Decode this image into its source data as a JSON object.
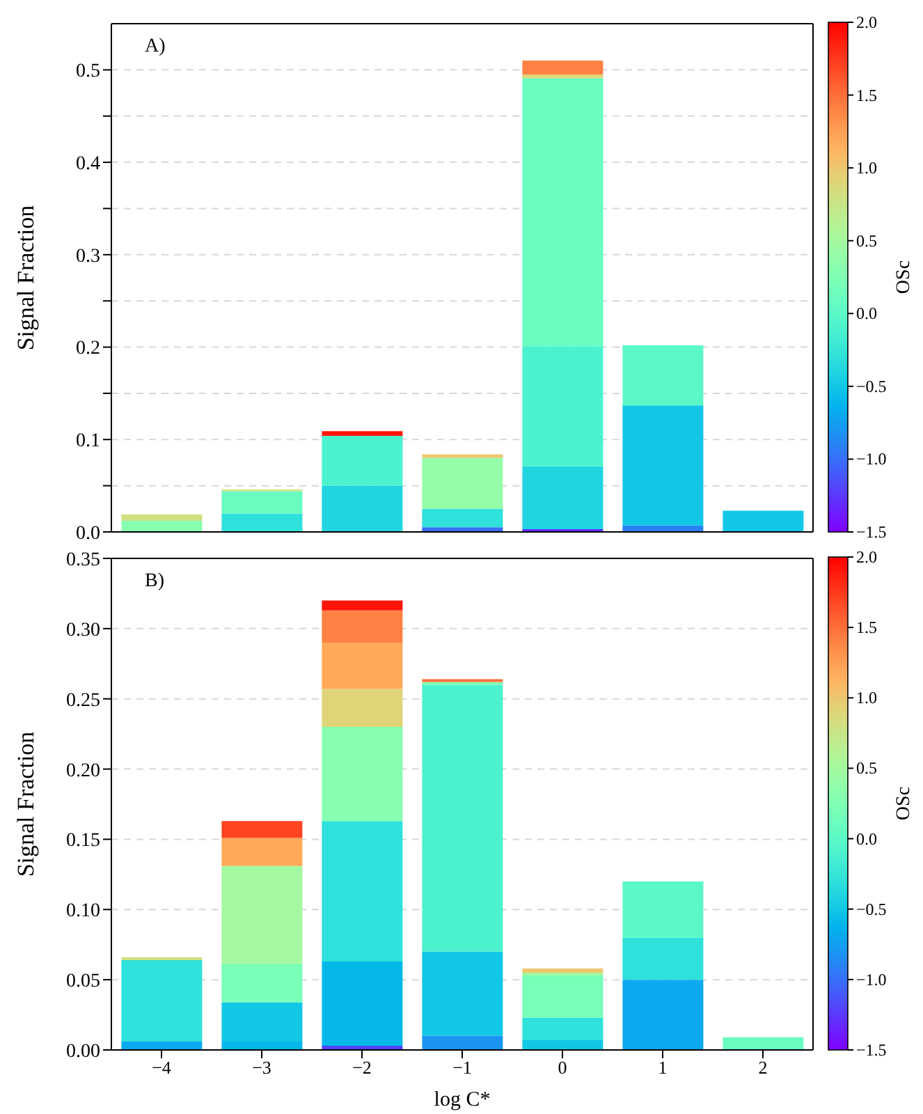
{
  "chart_data": [
    {
      "type": "bar",
      "stacked": true,
      "ylabel": "Signal Fraction",
      "clabel": "OSc",
      "annotations": [
        "A)"
      ],
      "tick_labels": "y",
      "grid": "y",
      "legend": false,
      "categories": [
        "−4",
        "−3",
        "−2",
        "−1",
        "0",
        "1",
        "2"
      ],
      "ylim": [
        0,
        0.55
      ],
      "yticks": [
        {
          "value": 0,
          "label": "0.0"
        },
        {
          "value": 0.05,
          "label": null
        },
        0.1,
        {
          "value": 0.15,
          "label": null
        },
        0.2,
        {
          "value": 0.25,
          "label": null
        },
        0.3,
        {
          "value": 0.35,
          "label": null
        },
        0.4,
        {
          "value": 0.45,
          "label": null
        },
        0.5
      ],
      "clim": [
        -1.5,
        2
      ],
      "cticks": [
        {
          "value": -1.5,
          "label": "−1.5"
        },
        {
          "value": -1,
          "label": "−1.0"
        },
        {
          "value": -0.5,
          "label": "−0.5"
        },
        {
          "value": 0,
          "label": "0.0"
        },
        {
          "value": 0.5,
          "label": "0.5"
        },
        {
          "value": 1,
          "label": "1.0"
        },
        {
          "value": 1.5,
          "label": "1.5"
        },
        {
          "value": 2,
          "label": "2.0"
        }
      ],
      "series": [
        {
          "values": [
            0.012,
            0.02,
            0.05,
            0.005,
            0.003,
            0.007,
            0.023
          ],
          "colors": [
            "#87ffb0",
            "#2fe1db",
            "#21d5e0",
            "#376ff9",
            "#622dfe",
            "#2882f6",
            "#12c7e6"
          ]
        },
        {
          "values": [
            0.007,
            0.024,
            0.054,
            0.02,
            0.068,
            0.13,
            null
          ],
          "colors": [
            "#cfe183",
            "#69fdc0",
            "#4cf2ce",
            "#2fe1db",
            "#21d5e0",
            "#12c7e6",
            null
          ]
        },
        {
          "values": [
            null,
            0.002,
            0.005,
            0.055,
            0.13,
            0.065,
            null
          ],
          "colors": [
            null,
            "#cfe183",
            "#ff170b",
            "#95fda8",
            "#4cf2ce",
            "#5bf9c7",
            null
          ]
        },
        {
          "values": [
            null,
            null,
            null,
            0.004,
            0.29,
            null,
            null
          ],
          "colors": [
            null,
            null,
            null,
            "#edc76f",
            "#69fdc0",
            null,
            null
          ]
        },
        {
          "values": [
            null,
            null,
            null,
            null,
            0.004,
            null,
            null
          ],
          "color": "#dfd578"
        },
        {
          "values": [
            null,
            null,
            null,
            null,
            0.015,
            null,
            null
          ],
          "color": "#ff8244"
        }
      ]
    },
    {
      "type": "bar",
      "stacked": true,
      "xlabel": "log C*",
      "ylabel": "Signal Fraction",
      "clabel": "OSc",
      "annotations": [
        "B)"
      ],
      "grid": "y",
      "legend": false,
      "categories": [
        "−4",
        "−3",
        "−2",
        "−1",
        "0",
        "1",
        "2"
      ],
      "ylim": [
        0,
        0.35
      ],
      "yticks": [
        {
          "value": 0,
          "label": "0.00"
        },
        {
          "value": 0.05,
          "label": "0.05"
        },
        {
          "value": 0.1,
          "label": "0.10"
        },
        {
          "value": 0.15,
          "label": "0.15"
        },
        {
          "value": 0.2,
          "label": "0.20"
        },
        {
          "value": 0.25,
          "label": "0.25"
        },
        {
          "value": 0.3,
          "label": "0.30"
        },
        {
          "value": 0.35,
          "label": "0.35"
        }
      ],
      "clim": [
        -1.5,
        2
      ],
      "cticks": [
        {
          "value": -1.5,
          "label": "−1.5"
        },
        {
          "value": -1,
          "label": "−1.0"
        },
        {
          "value": -0.5,
          "label": "−0.5"
        },
        {
          "value": 0,
          "label": "0.0"
        },
        {
          "value": 0.5,
          "label": "0.5"
        },
        {
          "value": 1,
          "label": "1.0"
        },
        {
          "value": 1.5,
          "label": "1.5"
        },
        {
          "value": 2,
          "label": "2.0"
        }
      ],
      "series": [
        {
          "values": [
            0.006,
            0.006,
            0.003,
            0.01,
            0.007,
            0.05,
            0.009
          ],
          "colors": [
            "#0ba9ef",
            "#04b9ea",
            "#5444fd",
            "#1a96f2",
            "#12c7e6",
            "#0ba9ef",
            "#69fdc0"
          ]
        },
        {
          "values": [
            0.058,
            0.028,
            0.06,
            0.06,
            0.016,
            0.03,
            null
          ],
          "colors": [
            "#2fe1db",
            "#12c7e6",
            "#04b9ea",
            "#12c7e6",
            "#2fe1db",
            "#2fe1db",
            null
          ]
        },
        {
          "values": [
            0.002,
            0.027,
            0.1,
            0.19,
            0.03,
            0.04,
            null
          ],
          "colors": [
            "#cfe183",
            "#78ffb8",
            "#2fe1db",
            "#4cf2ce",
            "#78ffb8",
            "#5bf9c7",
            null
          ]
        },
        {
          "values": [
            null,
            0.07,
            0.067,
            0.002,
            0.002,
            null,
            null
          ],
          "colors": [
            null,
            "#a4f9a0",
            "#87ffb0",
            "#87ffb0",
            "#a4f9a0",
            null,
            null
          ]
        },
        {
          "values": [
            null,
            0.02,
            0.027,
            0.002,
            0.003,
            null,
            null
          ],
          "colors": [
            null,
            "#ffa959",
            "#dfd578",
            "#ff6f39",
            "#edc76f",
            null,
            null
          ]
        },
        {
          "values": [
            null,
            0.012,
            0.033,
            null,
            null,
            null,
            null
          ],
          "colors": [
            null,
            "#ff4422",
            "#ffa959",
            null,
            null,
            null,
            null
          ]
        },
        {
          "values": [
            null,
            null,
            0.023,
            null,
            null,
            null,
            null
          ],
          "color": "#ff8244"
        },
        {
          "values": [
            null,
            null,
            0.007,
            null,
            null,
            null,
            null
          ],
          "color": "#ff170b"
        }
      ]
    }
  ]
}
